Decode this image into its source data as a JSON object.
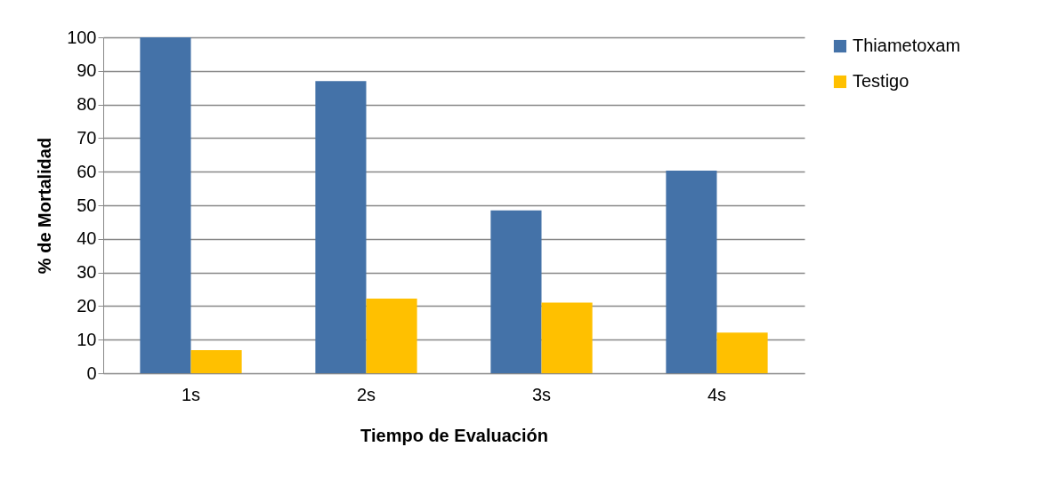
{
  "chart_data": {
    "type": "bar",
    "xlabel": "Tiempo de Evaluación",
    "ylabel": "%  de  Mortalidad",
    "categories": [
      "1s",
      "2s",
      "3s",
      "4s"
    ],
    "series": [
      {
        "name": "Thiametoxam",
        "color": "#4472a8",
        "values": [
          100,
          87,
          48.5,
          60.3
        ]
      },
      {
        "name": "Testigo",
        "color": "#ffc000",
        "values": [
          6.9,
          22.2,
          21,
          12.1
        ]
      }
    ],
    "ylim": [
      0,
      100
    ],
    "yticks": [
      0,
      10,
      20,
      30,
      40,
      50,
      60,
      70,
      80,
      90,
      100
    ],
    "grid": "y",
    "legend": "right"
  }
}
